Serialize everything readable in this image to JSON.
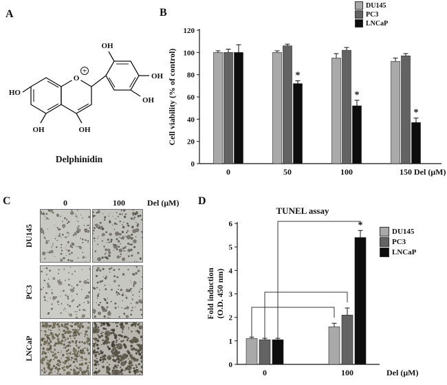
{
  "figure": {
    "panel_labels": {
      "a": "A",
      "b": "B",
      "c": "C",
      "d": "D"
    }
  },
  "panel_a": {
    "compound_name": "Delphinidin",
    "atom_labels": {
      "ho": "HO",
      "oh_5": "OH",
      "oh_3": "OH",
      "oh_3p": "OH",
      "oh_4p": "OH",
      "oh_5p": "OH",
      "o": "O",
      "plus": "+"
    }
  },
  "legend": {
    "items": [
      {
        "label": "DU145",
        "color": "#a9a9a9"
      },
      {
        "label": "PC3",
        "color": "#636363"
      },
      {
        "label": "LNCaP",
        "color": "#0d0d0d"
      }
    ]
  },
  "panel_c": {
    "col_labels": [
      "0",
      "100"
    ],
    "unit_label": "Del (μM)",
    "row_labels": [
      "DU145",
      "PC3",
      "LNCaP"
    ],
    "images": [
      {
        "name": "du145-0",
        "seed": 11,
        "bg": "#c9c9c4",
        "layers": [
          {
            "n": 120,
            "rmin": 0.5,
            "rmax": 1.6,
            "color": "#56524c"
          },
          {
            "n": 18,
            "rmin": 1.8,
            "rmax": 3.2,
            "color": "#75716a"
          }
        ]
      },
      {
        "name": "du145-100",
        "seed": 22,
        "bg": "#c4c4bf",
        "layers": [
          {
            "n": 140,
            "rmin": 0.5,
            "rmax": 1.8,
            "color": "#4c4843"
          },
          {
            "n": 22,
            "rmin": 1.8,
            "rmax": 3.4,
            "color": "#6b675f"
          }
        ]
      },
      {
        "name": "pc3-0",
        "seed": 33,
        "bg": "#ccccc7",
        "layers": [
          {
            "n": 90,
            "rmin": 0.5,
            "rmax": 1.5,
            "color": "#5a564f"
          },
          {
            "n": 12,
            "rmin": 1.6,
            "rmax": 3.0,
            "color": "#7b776f"
          }
        ]
      },
      {
        "name": "pc3-100",
        "seed": 44,
        "bg": "#c7c7c2",
        "layers": [
          {
            "n": 110,
            "rmin": 0.5,
            "rmax": 1.7,
            "color": "#4e4a44"
          },
          {
            "n": 16,
            "rmin": 1.8,
            "rmax": 3.2,
            "color": "#6e6a62"
          }
        ]
      },
      {
        "name": "lncap-0",
        "seed": 55,
        "bg": "#bdbbb3",
        "layers": [
          {
            "n": 320,
            "rmin": 0.6,
            "rmax": 1.9,
            "color": "#55503f"
          },
          {
            "n": 60,
            "rmin": 1.5,
            "rmax": 2.8,
            "color": "#6e6852"
          }
        ]
      },
      {
        "name": "lncap-100",
        "seed": 66,
        "bg": "#b8b6ae",
        "layers": [
          {
            "n": 280,
            "rmin": 0.7,
            "rmax": 2.2,
            "color": "#3e3a2e"
          },
          {
            "n": 40,
            "rmin": 2.2,
            "rmax": 4.5,
            "color": "#575243"
          }
        ]
      }
    ]
  },
  "chart_data": [
    {
      "id": "viability",
      "type": "bar",
      "title": "",
      "categories": [
        "0",
        "50",
        "100",
        "150"
      ],
      "series": [
        {
          "name": "DU145",
          "color": "#a9a9a9",
          "values": [
            100,
            100,
            95,
            92
          ],
          "errors": [
            1.5,
            1.5,
            4,
            3
          ]
        },
        {
          "name": "PC3",
          "color": "#636363",
          "values": [
            100,
            106,
            102,
            97
          ],
          "errors": [
            3,
            1.5,
            2.5,
            2
          ]
        },
        {
          "name": "LNCaP",
          "color": "#0d0d0d",
          "values": [
            100,
            72,
            52,
            37
          ],
          "errors": [
            7,
            2.5,
            5,
            4
          ]
        }
      ],
      "significance": [
        {
          "category": "50",
          "series": "LNCaP"
        },
        {
          "category": "100",
          "series": "LNCaP"
        },
        {
          "category": "150",
          "series": "LNCaP"
        }
      ],
      "xlabel": "Del (μM)",
      "ylabel": "Cell viability (% of control)",
      "ylim": [
        0,
        120
      ],
      "yticks": [
        0,
        20,
        40,
        60,
        80,
        100,
        120
      ],
      "legend_position": "top-right",
      "grid": false
    },
    {
      "id": "tunel",
      "type": "bar",
      "title": "TUNEL assay",
      "categories": [
        "0",
        "100"
      ],
      "series": [
        {
          "name": "DU145",
          "color": "#a9a9a9",
          "values": [
            1.1,
            1.6
          ],
          "errors": [
            0.06,
            0.15
          ]
        },
        {
          "name": "PC3",
          "color": "#636363",
          "values": [
            1.05,
            2.1
          ],
          "errors": [
            0.06,
            0.3
          ]
        },
        {
          "name": "LNCaP",
          "color": "#0d0d0d",
          "values": [
            1.05,
            5.4
          ],
          "errors": [
            0.06,
            0.3
          ]
        }
      ],
      "significance": [
        {
          "category": "100",
          "series": "LNCaP"
        }
      ],
      "comparisons": [
        {
          "series": "DU145",
          "from": "0",
          "to": "100"
        },
        {
          "series": "PC3",
          "from": "0",
          "to": "100"
        },
        {
          "series": "LNCaP",
          "from": "0",
          "to": "100"
        }
      ],
      "xlabel": "Del (μM)",
      "ylabel": "Fold induction\n(O.D. 450 nm)",
      "ylim": [
        0,
        6
      ],
      "yticks": [
        0,
        1,
        2,
        3,
        4,
        5,
        6
      ],
      "legend_position": "right",
      "grid": false
    }
  ]
}
